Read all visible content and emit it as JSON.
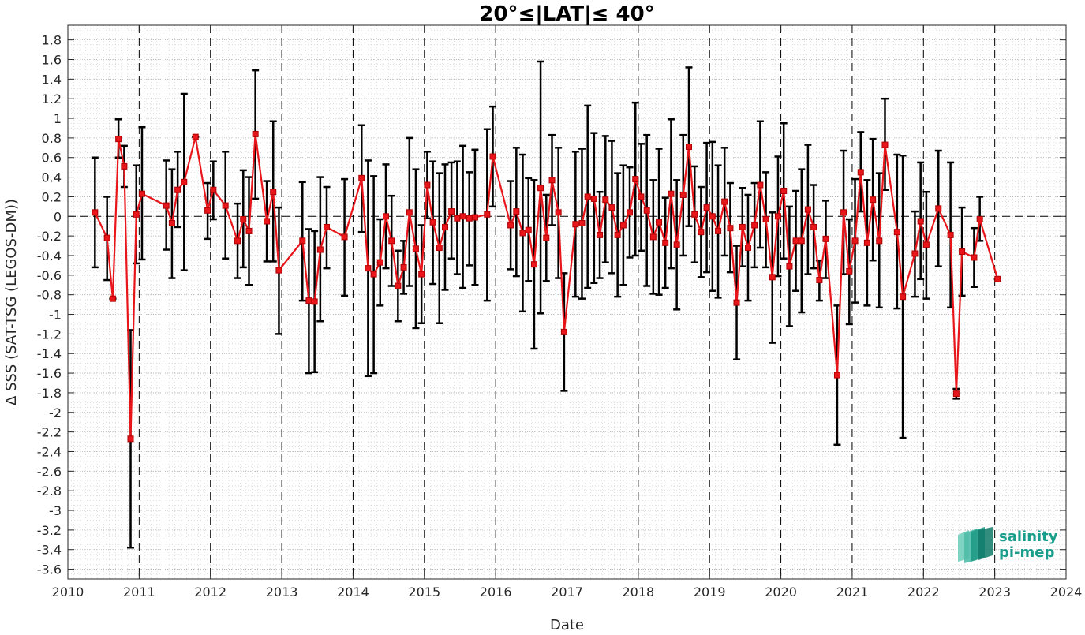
{
  "chart_data": {
    "type": "line",
    "title": "20°≤|LAT|≤ 40°",
    "xlabel": "Date",
    "ylabel": "Δ SSS (SAT-TSG (LEGOS-DM))",
    "xlim": [
      2010,
      2024
    ],
    "ylim": [
      -3.7,
      1.95
    ],
    "x_ticks": [
      "2010",
      "2011",
      "2012",
      "2013",
      "2014",
      "2015",
      "2016",
      "2017",
      "2018",
      "2019",
      "2020",
      "2021",
      "2022",
      "2023",
      "2024"
    ],
    "y_ticks": [
      "1.8",
      "1.6",
      "1.4",
      "1.2",
      "1",
      "0.8",
      "0.6",
      "0.4",
      "0.2",
      "0",
      "-0.2",
      "-0.4",
      "-0.6",
      "-0.8",
      "-1",
      "-1.2",
      "-1.4",
      "-1.6",
      "-1.8",
      "-2",
      "-2.2",
      "-2.4",
      "-2.6",
      "-2.8",
      "-3",
      "-3.2",
      "-3.4",
      "-3.6"
    ],
    "grid": true,
    "legend": "none",
    "series": [
      {
        "color": "#e8161b",
        "errorbar_color": "#000000",
        "marker": "square",
        "points": [
          {
            "x": 2010.38,
            "y": 0.04,
            "lo": -0.52,
            "hi": 0.6
          },
          {
            "x": 2010.55,
            "y": -0.22,
            "lo": -0.65,
            "hi": 0.2
          },
          {
            "x": 2010.63,
            "y": -0.84,
            "lo": -0.84,
            "hi": -0.84
          },
          {
            "x": 2010.71,
            "y": 0.79,
            "lo": 0.6,
            "hi": 0.99
          },
          {
            "x": 2010.79,
            "y": 0.51,
            "lo": 0.3,
            "hi": 0.72
          },
          {
            "x": 2010.88,
            "y": -2.27,
            "lo": -3.38,
            "hi": -1.16
          },
          {
            "x": 2010.96,
            "y": 0.02,
            "lo": -0.48,
            "hi": 0.52
          },
          {
            "x": 2011.04,
            "y": 0.23,
            "lo": -0.44,
            "hi": 0.91
          },
          {
            "x": 2011.38,
            "y": 0.11,
            "lo": -0.34,
            "hi": 0.57
          },
          {
            "x": 2011.46,
            "y": -0.07,
            "lo": -0.63,
            "hi": 0.48
          },
          {
            "x": 2011.54,
            "y": 0.27,
            "lo": -0.11,
            "hi": 0.66
          },
          {
            "x": 2011.63,
            "y": 0.35,
            "lo": -0.55,
            "hi": 1.25
          },
          {
            "x": 2011.79,
            "y": 0.81,
            "lo": 0.81,
            "hi": 0.81
          },
          {
            "x": 2011.96,
            "y": 0.06,
            "lo": -0.23,
            "hi": 0.34
          },
          {
            "x": 2012.04,
            "y": 0.27,
            "lo": -0.03,
            "hi": 0.56
          },
          {
            "x": 2012.21,
            "y": 0.11,
            "lo": -0.43,
            "hi": 0.66
          },
          {
            "x": 2012.38,
            "y": -0.25,
            "lo": -0.63,
            "hi": 0.13
          },
          {
            "x": 2012.46,
            "y": -0.03,
            "lo": -0.52,
            "hi": 0.47
          },
          {
            "x": 2012.54,
            "y": -0.15,
            "lo": -0.7,
            "hi": 0.4
          },
          {
            "x": 2012.63,
            "y": 0.84,
            "lo": 0.18,
            "hi": 1.49
          },
          {
            "x": 2012.79,
            "y": -0.05,
            "lo": -0.46,
            "hi": 0.36
          },
          {
            "x": 2012.88,
            "y": 0.25,
            "lo": -0.46,
            "hi": 0.97
          },
          {
            "x": 2012.96,
            "y": -0.55,
            "lo": -1.2,
            "hi": 0.09
          },
          {
            "x": 2013.29,
            "y": -0.25,
            "lo": -0.86,
            "hi": 0.35
          },
          {
            "x": 2013.38,
            "y": -0.86,
            "lo": -1.6,
            "hi": -0.13
          },
          {
            "x": 2013.46,
            "y": -0.87,
            "lo": -1.59,
            "hi": -0.15
          },
          {
            "x": 2013.54,
            "y": -0.34,
            "lo": -1.07,
            "hi": 0.4
          },
          {
            "x": 2013.63,
            "y": -0.11,
            "lo": -0.53,
            "hi": 0.3
          },
          {
            "x": 2013.88,
            "y": -0.21,
            "lo": -0.81,
            "hi": 0.38
          },
          {
            "x": 2014.12,
            "y": 0.39,
            "lo": -0.16,
            "hi": 0.93
          },
          {
            "x": 2014.21,
            "y": -0.53,
            "lo": -1.63,
            "hi": 0.57
          },
          {
            "x": 2014.29,
            "y": -0.59,
            "lo": -1.6,
            "hi": 0.41
          },
          {
            "x": 2014.38,
            "y": -0.47,
            "lo": -0.91,
            "hi": -0.03
          },
          {
            "x": 2014.46,
            "y": 0.0,
            "lo": -0.53,
            "hi": 0.53
          },
          {
            "x": 2014.54,
            "y": -0.25,
            "lo": -0.71,
            "hi": 0.21
          },
          {
            "x": 2014.63,
            "y": -0.71,
            "lo": -1.07,
            "hi": -0.35
          },
          {
            "x": 2014.71,
            "y": -0.52,
            "lo": -0.79,
            "hi": -0.25
          },
          {
            "x": 2014.79,
            "y": 0.04,
            "lo": -0.71,
            "hi": 0.8
          },
          {
            "x": 2014.88,
            "y": -0.33,
            "lo": -1.14,
            "hi": 0.48
          },
          {
            "x": 2014.96,
            "y": -0.59,
            "lo": -1.09,
            "hi": -0.09
          },
          {
            "x": 2015.04,
            "y": 0.32,
            "lo": -0.02,
            "hi": 0.66
          },
          {
            "x": 2015.12,
            "y": -0.06,
            "lo": -0.69,
            "hi": 0.56
          },
          {
            "x": 2015.21,
            "y": -0.32,
            "lo": -1.09,
            "hi": 0.44
          },
          {
            "x": 2015.29,
            "y": -0.11,
            "lo": -0.75,
            "hi": 0.53
          },
          {
            "x": 2015.38,
            "y": 0.05,
            "lo": -0.43,
            "hi": 0.55
          },
          {
            "x": 2015.46,
            "y": -0.02,
            "lo": -0.59,
            "hi": 0.56
          },
          {
            "x": 2015.54,
            "y": 0.0,
            "lo": -0.73,
            "hi": 0.72
          },
          {
            "x": 2015.63,
            "y": -0.02,
            "lo": -0.5,
            "hi": 0.45
          },
          {
            "x": 2015.71,
            "y": -0.01,
            "lo": -0.7,
            "hi": 0.68
          },
          {
            "x": 2015.88,
            "y": 0.02,
            "lo": -0.86,
            "hi": 0.89
          },
          {
            "x": 2015.96,
            "y": 0.61,
            "lo": 0.1,
            "hi": 1.12
          },
          {
            "x": 2016.21,
            "y": -0.09,
            "lo": -0.54,
            "hi": 0.36
          },
          {
            "x": 2016.29,
            "y": 0.05,
            "lo": -0.61,
            "hi": 0.7
          },
          {
            "x": 2016.38,
            "y": -0.17,
            "lo": -0.97,
            "hi": 0.63
          },
          {
            "x": 2016.46,
            "y": -0.14,
            "lo": -0.66,
            "hi": 0.39
          },
          {
            "x": 2016.54,
            "y": -0.49,
            "lo": -1.35,
            "hi": 0.37
          },
          {
            "x": 2016.63,
            "y": 0.29,
            "lo": -0.99,
            "hi": 1.58
          },
          {
            "x": 2016.71,
            "y": -0.22,
            "lo": -0.66,
            "hi": 0.22
          },
          {
            "x": 2016.79,
            "y": 0.37,
            "lo": -0.09,
            "hi": 0.83
          },
          {
            "x": 2016.88,
            "y": 0.04,
            "lo": -0.63,
            "hi": 0.7
          },
          {
            "x": 2016.96,
            "y": -1.18,
            "lo": -1.78,
            "hi": -0.58
          },
          {
            "x": 2017.12,
            "y": -0.08,
            "lo": -0.82,
            "hi": 0.66
          },
          {
            "x": 2017.21,
            "y": -0.07,
            "lo": -0.84,
            "hi": 0.69
          },
          {
            "x": 2017.29,
            "y": 0.2,
            "lo": -0.73,
            "hi": 1.13
          },
          {
            "x": 2017.38,
            "y": 0.18,
            "lo": -0.68,
            "hi": 0.85
          },
          {
            "x": 2017.46,
            "y": -0.19,
            "lo": -0.63,
            "hi": 0.25
          },
          {
            "x": 2017.54,
            "y": 0.17,
            "lo": -0.47,
            "hi": 0.82
          },
          {
            "x": 2017.63,
            "y": 0.09,
            "lo": -0.58,
            "hi": 0.77
          },
          {
            "x": 2017.71,
            "y": -0.19,
            "lo": -0.82,
            "hi": 0.44
          },
          {
            "x": 2017.79,
            "y": -0.09,
            "lo": -0.7,
            "hi": 0.52
          },
          {
            "x": 2017.88,
            "y": 0.04,
            "lo": -0.42,
            "hi": 0.5
          },
          {
            "x": 2017.96,
            "y": 0.38,
            "lo": -0.4,
            "hi": 1.16
          },
          {
            "x": 2018.04,
            "y": 0.2,
            "lo": -0.35,
            "hi": 0.74
          },
          {
            "x": 2018.12,
            "y": 0.06,
            "lo": -0.71,
            "hi": 0.83
          },
          {
            "x": 2018.21,
            "y": -0.21,
            "lo": -0.79,
            "hi": 0.37
          },
          {
            "x": 2018.29,
            "y": -0.06,
            "lo": -0.8,
            "hi": 0.69
          },
          {
            "x": 2018.38,
            "y": -0.27,
            "lo": -0.73,
            "hi": 0.19
          },
          {
            "x": 2018.46,
            "y": 0.23,
            "lo": -0.53,
            "hi": 0.99
          },
          {
            "x": 2018.54,
            "y": -0.29,
            "lo": -0.95,
            "hi": 0.37
          },
          {
            "x": 2018.63,
            "y": 0.22,
            "lo": -0.4,
            "hi": 0.83
          },
          {
            "x": 2018.71,
            "y": 0.71,
            "lo": -0.1,
            "hi": 1.52
          },
          {
            "x": 2018.79,
            "y": 0.02,
            "lo": -0.47,
            "hi": 0.51
          },
          {
            "x": 2018.88,
            "y": -0.16,
            "lo": -0.62,
            "hi": 0.3
          },
          {
            "x": 2018.96,
            "y": 0.09,
            "lo": -0.57,
            "hi": 0.75
          },
          {
            "x": 2019.04,
            "y": 0.0,
            "lo": -0.76,
            "hi": 0.76
          },
          {
            "x": 2019.12,
            "y": -0.15,
            "lo": -0.83,
            "hi": 0.52
          },
          {
            "x": 2019.21,
            "y": 0.15,
            "lo": -0.4,
            "hi": 0.7
          },
          {
            "x": 2019.29,
            "y": -0.12,
            "lo": -0.57,
            "hi": 0.34
          },
          {
            "x": 2019.38,
            "y": -0.88,
            "lo": -1.46,
            "hi": -0.3
          },
          {
            "x": 2019.46,
            "y": -0.11,
            "lo": -0.51,
            "hi": 0.29
          },
          {
            "x": 2019.54,
            "y": -0.32,
            "lo": -0.86,
            "hi": 0.22
          },
          {
            "x": 2019.63,
            "y": -0.09,
            "lo": -0.52,
            "hi": 0.34
          },
          {
            "x": 2019.71,
            "y": 0.32,
            "lo": -0.32,
            "hi": 0.97
          },
          {
            "x": 2019.79,
            "y": -0.03,
            "lo": -0.52,
            "hi": 0.45
          },
          {
            "x": 2019.88,
            "y": -0.62,
            "lo": -1.29,
            "hi": 0.04
          },
          {
            "x": 2019.96,
            "y": 0.0,
            "lo": -0.61,
            "hi": 0.61
          },
          {
            "x": 2020.04,
            "y": 0.26,
            "lo": -0.43,
            "hi": 0.95
          },
          {
            "x": 2020.12,
            "y": -0.51,
            "lo": -1.12,
            "hi": 0.1
          },
          {
            "x": 2020.21,
            "y": -0.25,
            "lo": -0.76,
            "hi": 0.26
          },
          {
            "x": 2020.29,
            "y": -0.25,
            "lo": -0.98,
            "hi": 0.48
          },
          {
            "x": 2020.38,
            "y": 0.07,
            "lo": -0.59,
            "hi": 0.73
          },
          {
            "x": 2020.46,
            "y": -0.11,
            "lo": -0.53,
            "hi": 0.32
          },
          {
            "x": 2020.54,
            "y": -0.65,
            "lo": -0.86,
            "hi": -0.45
          },
          {
            "x": 2020.63,
            "y": -0.23,
            "lo": -0.63,
            "hi": 0.16
          },
          {
            "x": 2020.79,
            "y": -1.62,
            "lo": -2.33,
            "hi": -0.91
          },
          {
            "x": 2020.88,
            "y": 0.04,
            "lo": -0.59,
            "hi": 0.67
          },
          {
            "x": 2020.96,
            "y": -0.56,
            "lo": -1.1,
            "hi": -0.03
          },
          {
            "x": 2021.04,
            "y": -0.25,
            "lo": -0.88,
            "hi": 0.38
          },
          {
            "x": 2021.12,
            "y": 0.45,
            "lo": 0.05,
            "hi": 0.86
          },
          {
            "x": 2021.21,
            "y": -0.27,
            "lo": -0.91,
            "hi": 0.37
          },
          {
            "x": 2021.29,
            "y": 0.17,
            "lo": -0.45,
            "hi": 0.79
          },
          {
            "x": 2021.38,
            "y": -0.25,
            "lo": -0.93,
            "hi": 0.44
          },
          {
            "x": 2021.46,
            "y": 0.73,
            "lo": 0.27,
            "hi": 1.2
          },
          {
            "x": 2021.63,
            "y": -0.16,
            "lo": -0.94,
            "hi": 0.63
          },
          {
            "x": 2021.71,
            "y": -0.82,
            "lo": -2.26,
            "hi": 0.62
          },
          {
            "x": 2021.88,
            "y": -0.38,
            "lo": -0.82,
            "hi": 0.05
          },
          {
            "x": 2021.96,
            "y": -0.05,
            "lo": -0.64,
            "hi": 0.55
          },
          {
            "x": 2022.04,
            "y": -0.29,
            "lo": -0.84,
            "hi": 0.25
          },
          {
            "x": 2022.21,
            "y": 0.08,
            "lo": -0.51,
            "hi": 0.67
          },
          {
            "x": 2022.38,
            "y": -0.19,
            "lo": -0.93,
            "hi": 0.55
          },
          {
            "x": 2022.46,
            "y": -1.81,
            "lo": -1.86,
            "hi": -1.76
          },
          {
            "x": 2022.54,
            "y": -0.36,
            "lo": -0.81,
            "hi": 0.09
          },
          {
            "x": 2022.71,
            "y": -0.42,
            "lo": -0.72,
            "hi": -0.12
          },
          {
            "x": 2022.79,
            "y": -0.03,
            "lo": -0.25,
            "hi": 0.2
          },
          {
            "x": 2023.04,
            "y": -0.64,
            "lo": -0.64,
            "hi": -0.64
          }
        ]
      }
    ]
  },
  "logo": {
    "line1": "salinity",
    "line2": "pi-mep",
    "text_color": "#1a9e8c"
  }
}
